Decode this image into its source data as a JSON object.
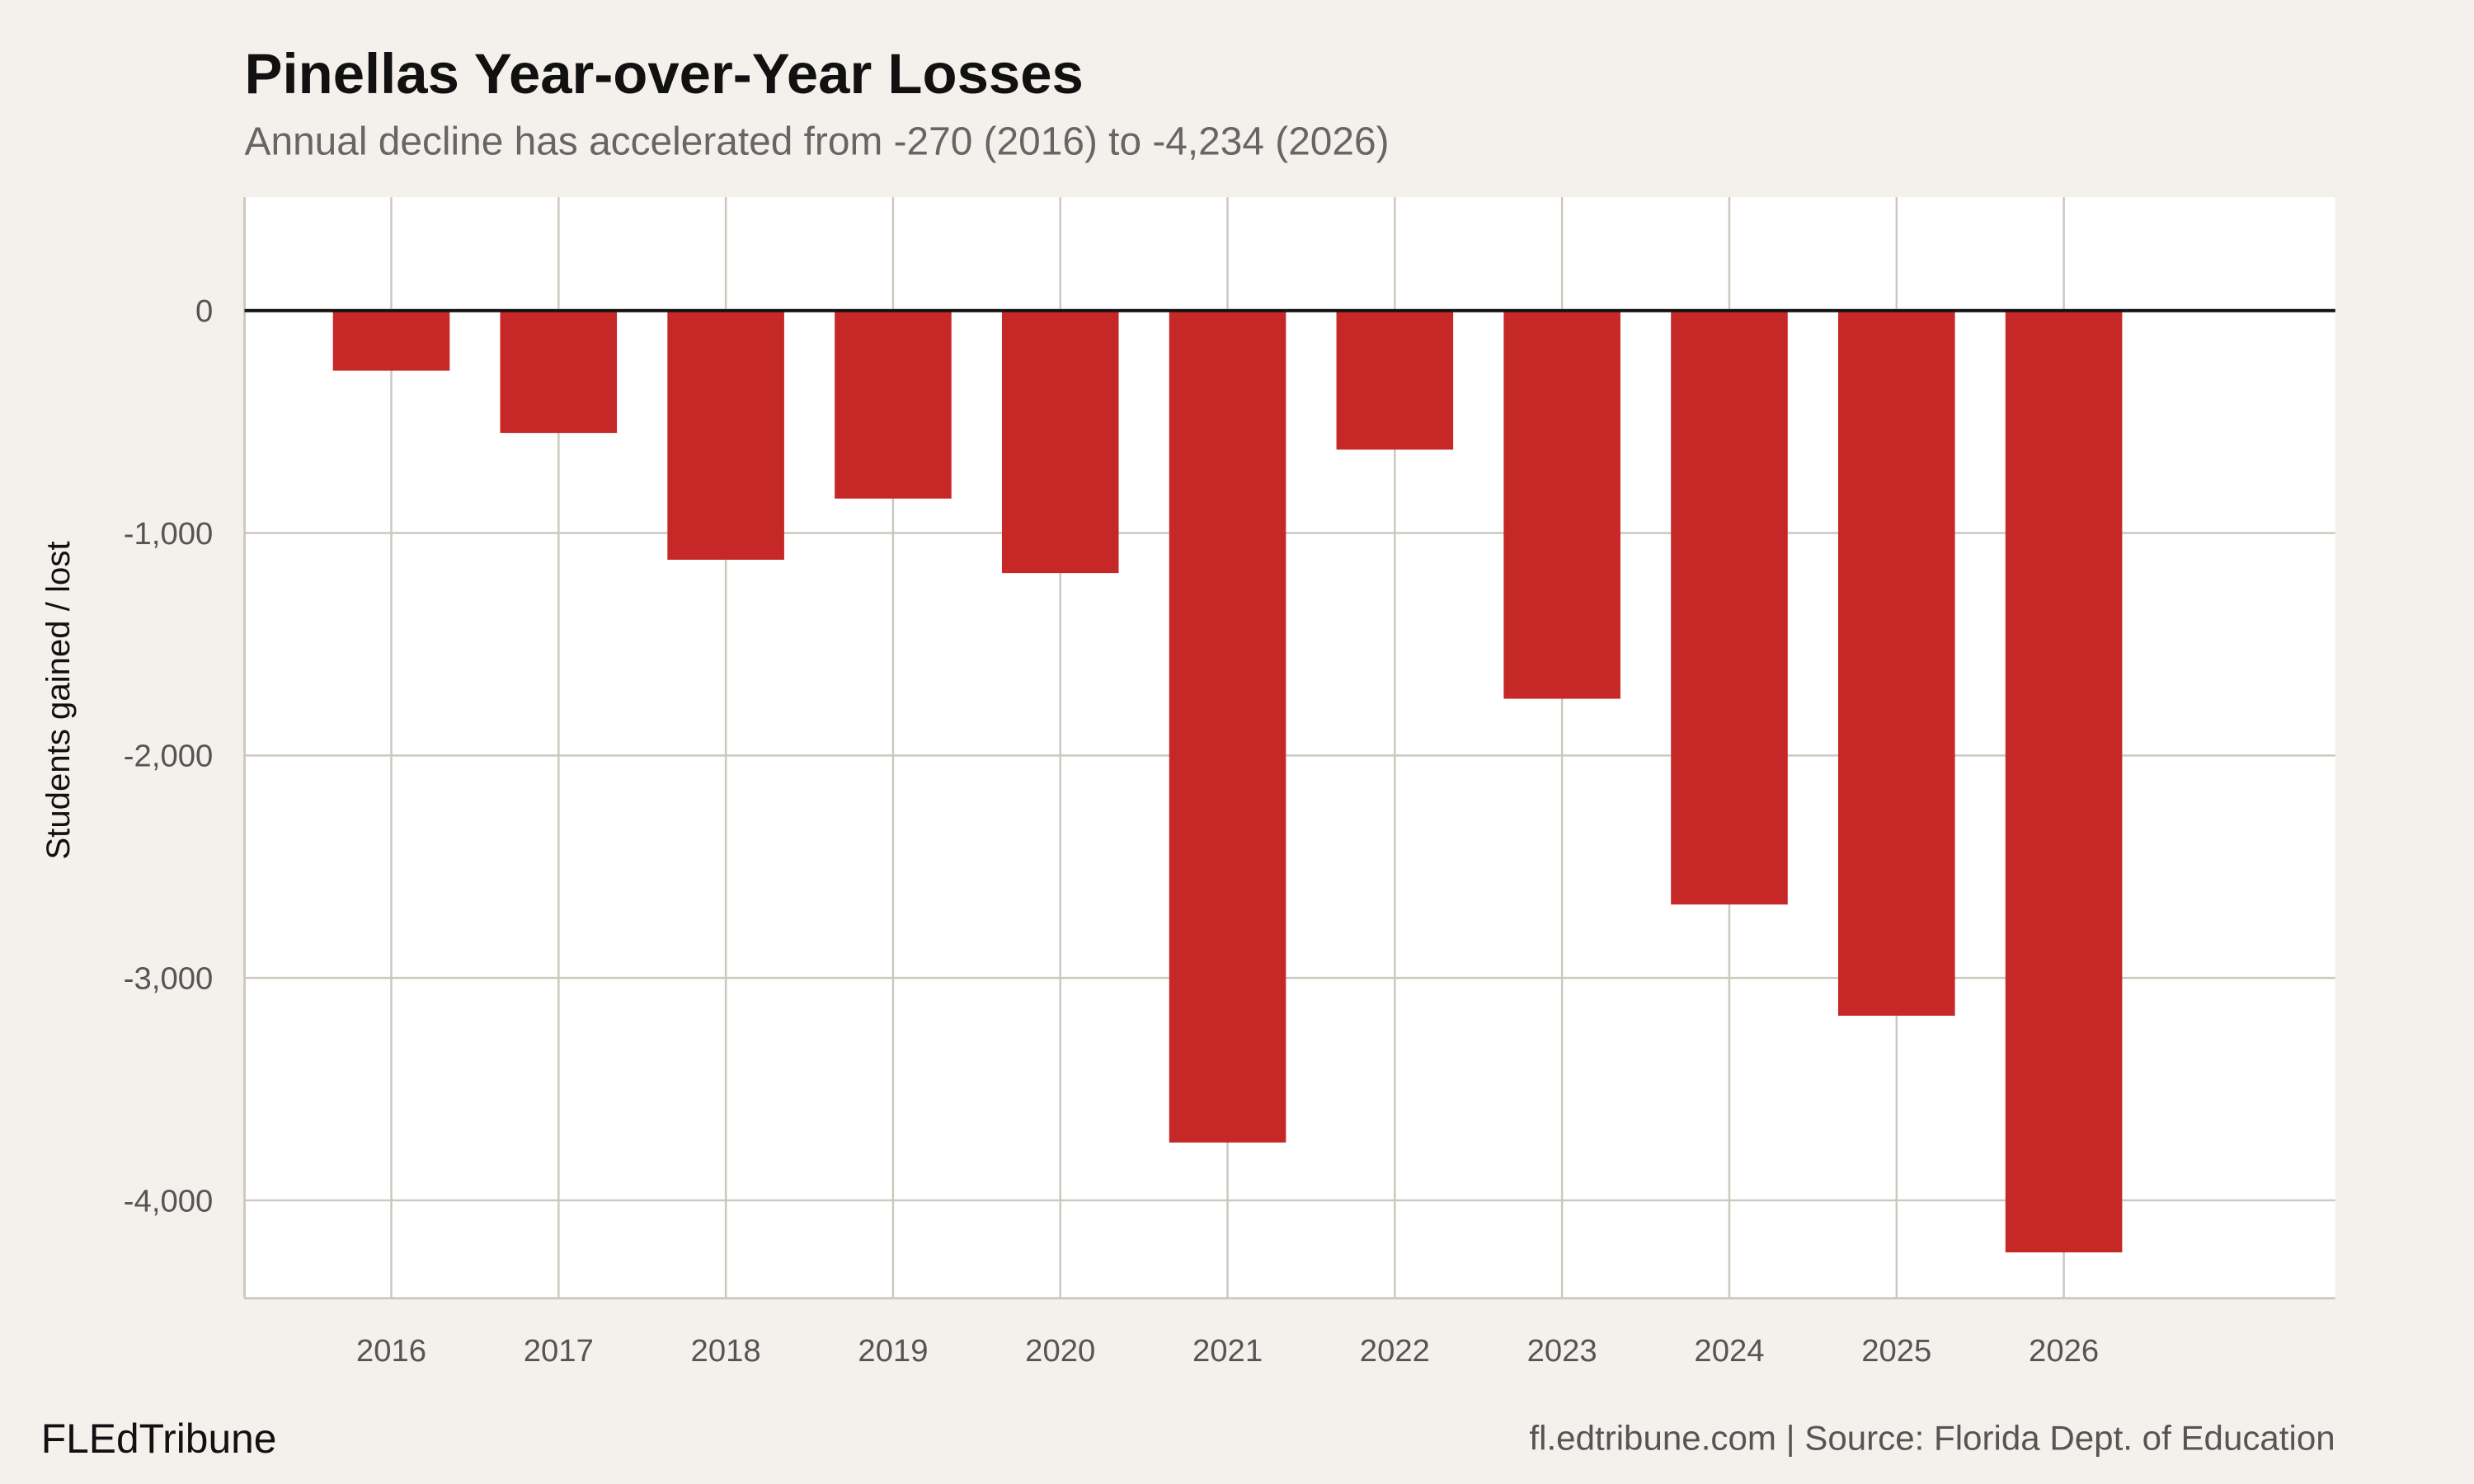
{
  "title": "Pinellas Year-over-Year Losses",
  "subtitle": "Annual decline has accelerated from -270 (2016) to -4,234 (2026)",
  "brand": "FLEdTribune",
  "source": "fl.edtribune.com | Source: Florida Dept. of Education",
  "chart_data": {
    "type": "bar",
    "title": "Pinellas Year-over-Year Losses",
    "xlabel": "",
    "ylabel": "Students gained / lost",
    "categories": [
      "2016",
      "2017",
      "2018",
      "2019",
      "2020",
      "2021",
      "2022",
      "2023",
      "2024",
      "2025",
      "2026"
    ],
    "values": [
      -270,
      -550,
      -1120,
      -845,
      -1180,
      -3740,
      -625,
      -1745,
      -2670,
      -3170,
      -4234
    ],
    "ylim": [
      -4440,
      510
    ],
    "yticks": [
      0,
      -1000,
      -2000,
      -3000,
      -4000
    ],
    "ytick_labels": [
      "0",
      "-1,000",
      "-2,000",
      "-3,000",
      "-4,000"
    ],
    "grid": true,
    "colors": {
      "bar": "#c62828",
      "background": "#f4f1ec",
      "panel": "#ffffff",
      "grid": "#ccc8bd",
      "zero_line": "#111111"
    }
  }
}
